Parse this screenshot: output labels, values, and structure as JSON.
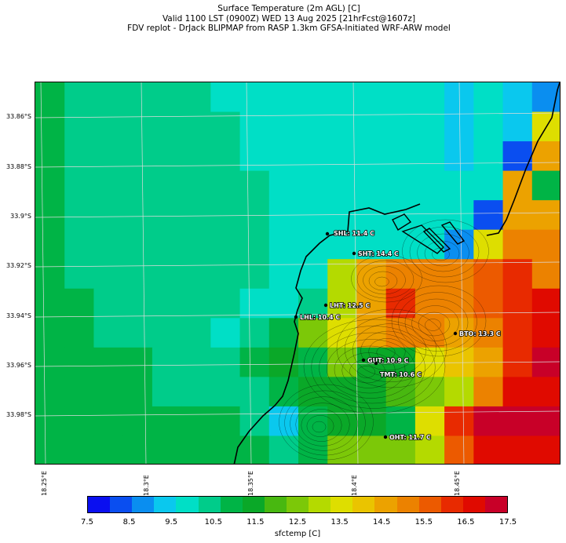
{
  "title": {
    "line1": "Surface Temperature (2m AGL) [C]",
    "line2": "Valid 1100 LST (0900Z) WED 13 Aug 2025 [21hrFcst@1607z]",
    "line3": "FDV replot - DrJack BLIPMAP from RASP 1.3km GFSA-Initiated WRF-ARW model"
  },
  "axes": {
    "y_ticks": [
      "33.86°S",
      "33.88°S",
      "33.9°S",
      "33.92°S",
      "33.94°S",
      "33.96°S",
      "33.98°S"
    ],
    "x_ticks": [
      "18.25°E",
      "18.3°E",
      "18.35°E",
      "18.4°E",
      "18.45°E"
    ]
  },
  "map": {
    "variable": "sfctemp",
    "grid_cols": 18,
    "grid_rows": 13,
    "grid": [
      [
        11.0,
        10.5,
        10.5,
        10.5,
        10.5,
        10.5,
        10.0,
        10.0,
        10.0,
        10.0,
        10.0,
        10.0,
        10.0,
        10.0,
        9.5,
        10.0,
        9.5,
        9.0
      ],
      [
        11.0,
        10.5,
        10.5,
        10.5,
        10.5,
        10.5,
        10.5,
        10.0,
        10.0,
        10.0,
        10.0,
        10.0,
        10.0,
        10.0,
        9.5,
        10.0,
        9.5,
        13.5
      ],
      [
        11.0,
        10.5,
        10.5,
        10.5,
        10.5,
        10.5,
        10.5,
        10.0,
        10.0,
        10.0,
        10.0,
        10.0,
        10.0,
        10.0,
        9.5,
        10.0,
        8.5,
        14.5
      ],
      [
        11.0,
        10.5,
        10.5,
        10.5,
        10.5,
        10.5,
        10.5,
        10.5,
        10.0,
        10.0,
        10.0,
        10.0,
        10.0,
        10.0,
        10.0,
        10.0,
        14.5,
        11.0
      ],
      [
        11.0,
        10.5,
        10.5,
        10.5,
        10.5,
        10.5,
        10.5,
        10.5,
        10.0,
        10.0,
        10.0,
        10.0,
        10.0,
        10.0,
        10.0,
        8.5,
        14.5,
        14.5
      ],
      [
        11.0,
        10.5,
        10.5,
        10.5,
        10.5,
        10.5,
        10.5,
        10.5,
        10.0,
        10.0,
        10.0,
        10.0,
        10.0,
        10.0,
        9.0,
        13.5,
        15.0,
        15.0
      ],
      [
        11.0,
        10.5,
        10.5,
        10.5,
        10.5,
        10.5,
        10.5,
        10.5,
        10.0,
        10.0,
        13.0,
        14.5,
        15.0,
        15.0,
        15.0,
        15.5,
        16.0,
        15.0
      ],
      [
        11.0,
        11.0,
        10.5,
        10.5,
        10.5,
        10.5,
        10.5,
        10.0,
        10.0,
        10.5,
        13.0,
        14.5,
        16.0,
        15.0,
        15.0,
        15.5,
        16.0,
        16.5
      ],
      [
        11.0,
        11.0,
        10.5,
        10.5,
        10.5,
        10.5,
        10.0,
        10.5,
        11.0,
        12.5,
        13.5,
        14.5,
        15.0,
        15.0,
        14.5,
        15.0,
        16.0,
        16.5
      ],
      [
        11.0,
        11.0,
        11.0,
        11.0,
        10.5,
        10.5,
        10.5,
        11.0,
        11.5,
        11.0,
        12.5,
        11.5,
        11.5,
        13.5,
        14.0,
        14.5,
        16.0,
        17.0
      ],
      [
        11.0,
        11.0,
        11.0,
        11.0,
        10.5,
        10.5,
        10.5,
        10.5,
        11.0,
        11.5,
        11.5,
        11.5,
        12.0,
        12.5,
        13.0,
        15.0,
        16.5,
        16.5
      ],
      [
        11.0,
        11.0,
        11.0,
        11.0,
        11.0,
        11.0,
        11.0,
        10.5,
        9.5,
        11.0,
        11.5,
        11.5,
        11.0,
        13.5,
        16.0,
        17.0,
        17.0,
        17.0
      ],
      [
        11.0,
        11.0,
        11.0,
        11.0,
        11.0,
        11.0,
        11.0,
        11.0,
        10.5,
        11.0,
        12.5,
        12.5,
        12.5,
        13.0,
        15.5,
        16.5,
        16.5,
        16.5
      ]
    ],
    "stations": [
      {
        "code": "SHL",
        "label": "SHL: 11.4 C"
      },
      {
        "code": "SHT",
        "label": "SHT: 14.4 C"
      },
      {
        "code": "LHT",
        "label": "LHT: 12.5 C"
      },
      {
        "code": "LHL",
        "label": "LHL: 10.4 C"
      },
      {
        "code": "BTO",
        "label": "BTO: 13.3 C"
      },
      {
        "code": "GUT",
        "label": "GUT: 10.9 C"
      },
      {
        "code": "TMT",
        "label": "TMT: 10.6 C"
      },
      {
        "code": "OHT",
        "label": "OHT: 11.7 C"
      }
    ],
    "coastline_color": "#000000",
    "gridline_color": "#dcdcdc"
  },
  "colorbar": {
    "label": "sfctemp [C]",
    "ticks": [
      "7.5",
      "8.5",
      "9.5",
      "10.5",
      "11.5",
      "12.5",
      "13.5",
      "14.5",
      "15.5",
      "16.5",
      "17.5"
    ],
    "min": 7.5,
    "max": 17.5,
    "colors": [
      "#0a0ff0",
      "#0a4ef0",
      "#0a8ef0",
      "#0ac8ee",
      "#00dfc6",
      "#00cc8a",
      "#00b446",
      "#0aa828",
      "#48b810",
      "#7cc808",
      "#b4da00",
      "#dede00",
      "#eac400",
      "#eca200",
      "#ec8200",
      "#ec5a00",
      "#e82a00",
      "#e00a00",
      "#c80028"
    ]
  }
}
